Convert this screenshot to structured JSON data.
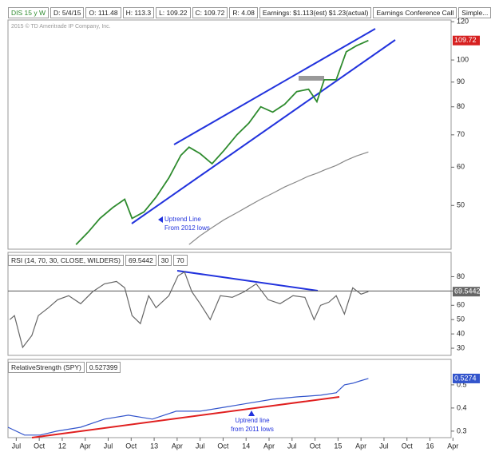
{
  "header": {
    "symbol": "DIS 15 y W",
    "fields": [
      "D: 5/4/15",
      "O: 111.48",
      "H: 113.3",
      "L: 109.22",
      "C: 109.72",
      "R: 4.08",
      "Earnings: $1.113(est) $1.23(actual)",
      "Earnings Conference Call",
      "Simple..."
    ],
    "copyright": "2015 © TD Ameritrade IP Company, Inc."
  },
  "chart_data": [
    {
      "type": "line",
      "log_scale": true,
      "x": [
        2012.15,
        2012.28,
        2012.41,
        2012.55,
        2012.68,
        2012.76,
        2012.89,
        2013.02,
        2013.16,
        2013.29,
        2013.38,
        2013.5,
        2013.63,
        2013.76,
        2013.9,
        2014.03,
        2014.16,
        2014.29,
        2014.42,
        2014.55,
        2014.68,
        2014.77,
        2014.85,
        2014.98,
        2015.09,
        2015.2,
        2015.33
      ],
      "series": [
        {
          "name": "DIS",
          "color": "#2e8b2e",
          "values": [
            41.5,
            44,
            47,
            49.5,
            51.5,
            47,
            48.5,
            52,
            57,
            63.5,
            66,
            64,
            61,
            65,
            70,
            74,
            80,
            78,
            81,
            86,
            87,
            82,
            91,
            91,
            104,
            107,
            109.72
          ]
        },
        {
          "name": "MA",
          "color": "#888888",
          "values": [
            null,
            null,
            null,
            null,
            null,
            null,
            null,
            null,
            null,
            null,
            41.5,
            43.3,
            45,
            46.7,
            48.3,
            49.9,
            51.5,
            53,
            54.6,
            56,
            57.5,
            58.3,
            59.2,
            60.5,
            62,
            63.3,
            64.5
          ]
        }
      ],
      "last_label_color": "#d62020",
      "xlim": [
        2011.41,
        2016.23
      ],
      "ylim": [
        40.6,
        121
      ],
      "yticks": [
        50,
        60,
        70,
        80,
        90,
        100,
        120
      ],
      "annotation": [
        "Uptrend Line",
        "From 2012 lows"
      ]
    },
    {
      "type": "line",
      "title": "RSI (14, 70, 30, CLOSE, WILDERS)",
      "levels": [
        30,
        70
      ],
      "x": [
        2011.43,
        2011.48,
        2011.57,
        2011.67,
        2011.74,
        2011.85,
        2011.95,
        2012.07,
        2012.2,
        2012.33,
        2012.46,
        2012.59,
        2012.68,
        2012.76,
        2012.85,
        2012.94,
        2013.02,
        2013.16,
        2013.26,
        2013.33,
        2013.41,
        2013.5,
        2013.61,
        2013.72,
        2013.85,
        2013.98,
        2014.11,
        2014.24,
        2014.37,
        2014.51,
        2014.64,
        2014.74,
        2014.81,
        2014.9,
        2014.98,
        2015.07,
        2015.16,
        2015.25,
        2015.33
      ],
      "series": [
        {
          "name": "RSI",
          "color": "#666666",
          "values": [
            50,
            52.8,
            30.6,
            38.9,
            52.8,
            58.3,
            63.9,
            66.7,
            61.1,
            69.4,
            75,
            76.7,
            72.2,
            52.8,
            47.2,
            66.7,
            58.3,
            66.7,
            80.6,
            83.3,
            69.4,
            61.1,
            50,
            66.7,
            65.6,
            69.4,
            75,
            63.9,
            61.1,
            66.7,
            65.6,
            50,
            60,
            62.2,
            66.7,
            53.9,
            72.2,
            67.8,
            69.5442
          ]
        }
      ],
      "last_label_color": "#666666",
      "xlim": [
        2011.41,
        2016.23
      ],
      "ylim": [
        25,
        97
      ],
      "yticks": [
        30,
        40,
        50,
        60,
        70,
        80
      ]
    },
    {
      "type": "line",
      "title": "RelativeStrength (SPY)",
      "header_value": "0.527399",
      "x": [
        2011.41,
        2011.59,
        2011.76,
        2011.94,
        2012.2,
        2012.46,
        2012.72,
        2012.98,
        2013.24,
        2013.5,
        2013.76,
        2014.03,
        2014.29,
        2014.55,
        2014.81,
        2014.98,
        2015.07,
        2015.16,
        2015.24,
        2015.33
      ],
      "series": [
        {
          "name": "RelativeStrength",
          "color": "#3355cc",
          "values": [
            0.317,
            0.283,
            0.283,
            0.3,
            0.317,
            0.352,
            0.369,
            0.352,
            0.386,
            0.386,
            0.403,
            0.421,
            0.438,
            0.448,
            0.455,
            0.466,
            0.5,
            0.507,
            0.517,
            0.5274
          ]
        }
      ],
      "last_label_color": "#3355cc",
      "xlim": [
        2011.41,
        2016.23
      ],
      "ylim": [
        0.272,
        0.61
      ],
      "yticks": [
        0.3,
        0.4,
        0.5
      ],
      "xticks": [
        {
          "value": 2011.5,
          "label": "Jul"
        },
        {
          "value": 2011.75,
          "label": "Oct"
        },
        {
          "value": 2012,
          "label": "12"
        },
        {
          "value": 2012.25,
          "label": "Apr"
        },
        {
          "value": 2012.5,
          "label": "Jul"
        },
        {
          "value": 2012.75,
          "label": "Oct"
        },
        {
          "value": 2013,
          "label": "13"
        },
        {
          "value": 2013.25,
          "label": "Apr"
        },
        {
          "value": 2013.5,
          "label": "Jul"
        },
        {
          "value": 2013.75,
          "label": "Oct"
        },
        {
          "value": 2014,
          "label": "14"
        },
        {
          "value": 2014.25,
          "label": "Apr"
        },
        {
          "value": 2014.5,
          "label": "Jul"
        },
        {
          "value": 2014.75,
          "label": "Oct"
        },
        {
          "value": 2015,
          "label": "15"
        },
        {
          "value": 2015.25,
          "label": "Apr"
        },
        {
          "value": 2015.5,
          "label": "Jul"
        },
        {
          "value": 2015.75,
          "label": "Oct"
        },
        {
          "value": 2016,
          "label": "16"
        },
        {
          "value": 2016.25,
          "label": "Apr"
        }
      ],
      "annotation": [
        "Uptrend line",
        "from 2011 lows"
      ]
    }
  ]
}
